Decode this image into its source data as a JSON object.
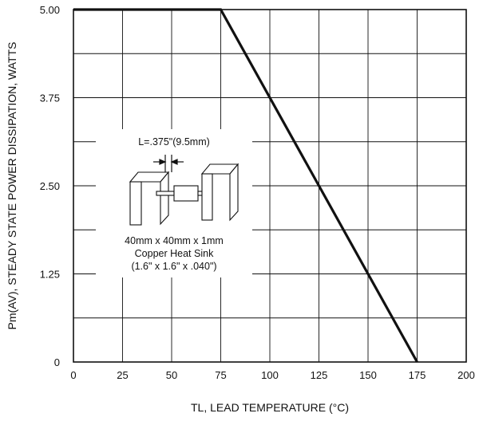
{
  "chart_data": {
    "type": "line",
    "title": "",
    "xlabel": "TL, LEAD TEMPERATURE (°C)",
    "ylabel": "Pm(AV), STEADY STATE POWER DISSIPATION, WATTS",
    "xlim": [
      0,
      200
    ],
    "ylim": [
      0,
      5.0
    ],
    "x_ticks": [
      "0",
      "25",
      "50",
      "75",
      "100",
      "125",
      "150",
      "175",
      "200"
    ],
    "y_ticks": [
      "0",
      "1.25",
      "2.50",
      "3.75",
      "5.00"
    ],
    "x_grid": [
      0,
      25,
      50,
      75,
      100,
      125,
      150,
      175,
      200
    ],
    "y_grid": [
      0,
      0.625,
      1.25,
      1.875,
      2.5,
      3.125,
      3.75,
      4.375,
      5.0
    ],
    "grid": true,
    "series": [
      {
        "x": [
          0,
          75,
          175
        ],
        "y": [
          5.0,
          5.0,
          0
        ]
      }
    ],
    "annotations": {
      "lead_length": "L=.375\"(9.5mm)",
      "heatsink_line1": "40mm x 40mm x 1mm",
      "heatsink_line2": "Copper Heat Sink",
      "heatsink_line3": "(1.6\" x 1.6\" x .040\")"
    },
    "colors": {
      "line": "#111111",
      "grid": "#111111"
    }
  }
}
